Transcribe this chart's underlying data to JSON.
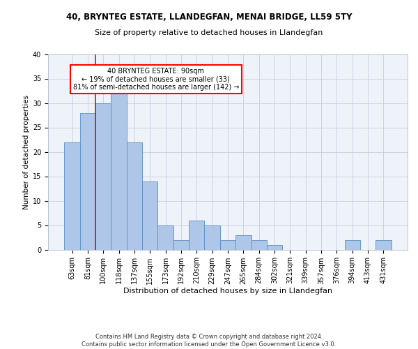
{
  "title1": "40, BRYNTEG ESTATE, LLANDEGFAN, MENAI BRIDGE, LL59 5TY",
  "title2": "Size of property relative to detached houses in Llandegfan",
  "xlabel": "Distribution of detached houses by size in Llandegfan",
  "ylabel": "Number of detached properties",
  "categories": [
    "63sqm",
    "81sqm",
    "100sqm",
    "118sqm",
    "137sqm",
    "155sqm",
    "173sqm",
    "192sqm",
    "210sqm",
    "229sqm",
    "247sqm",
    "265sqm",
    "284sqm",
    "302sqm",
    "321sqm",
    "339sqm",
    "357sqm",
    "376sqm",
    "394sqm",
    "413sqm",
    "431sqm"
  ],
  "values": [
    22,
    28,
    30,
    32,
    22,
    14,
    5,
    2,
    6,
    5,
    2,
    3,
    2,
    1,
    0,
    0,
    0,
    0,
    2,
    0,
    2
  ],
  "bar_color": "#aec6e8",
  "bar_edge_color": "#5a8fc0",
  "vline_x_index": 1,
  "vline_color": "#ff0000",
  "annotation_text": "40 BRYNTEG ESTATE: 90sqm\n← 19% of detached houses are smaller (33)\n81% of semi-detached houses are larger (142) →",
  "annotation_box_color": "#ffffff",
  "annotation_box_edge_color": "#ff0000",
  "footer_text": "Contains HM Land Registry data © Crown copyright and database right 2024.\nContains public sector information licensed under the Open Government Licence v3.0.",
  "ylim": [
    0,
    40
  ],
  "yticks": [
    0,
    5,
    10,
    15,
    20,
    25,
    30,
    35,
    40
  ],
  "bg_color": "#eef2f9",
  "fig_bg_color": "#ffffff",
  "title1_fontsize": 8.5,
  "title2_fontsize": 8.0,
  "xlabel_fontsize": 8.0,
  "ylabel_fontsize": 7.5,
  "tick_fontsize": 7.0,
  "footer_fontsize": 6.0,
  "annotation_fontsize": 7.0
}
